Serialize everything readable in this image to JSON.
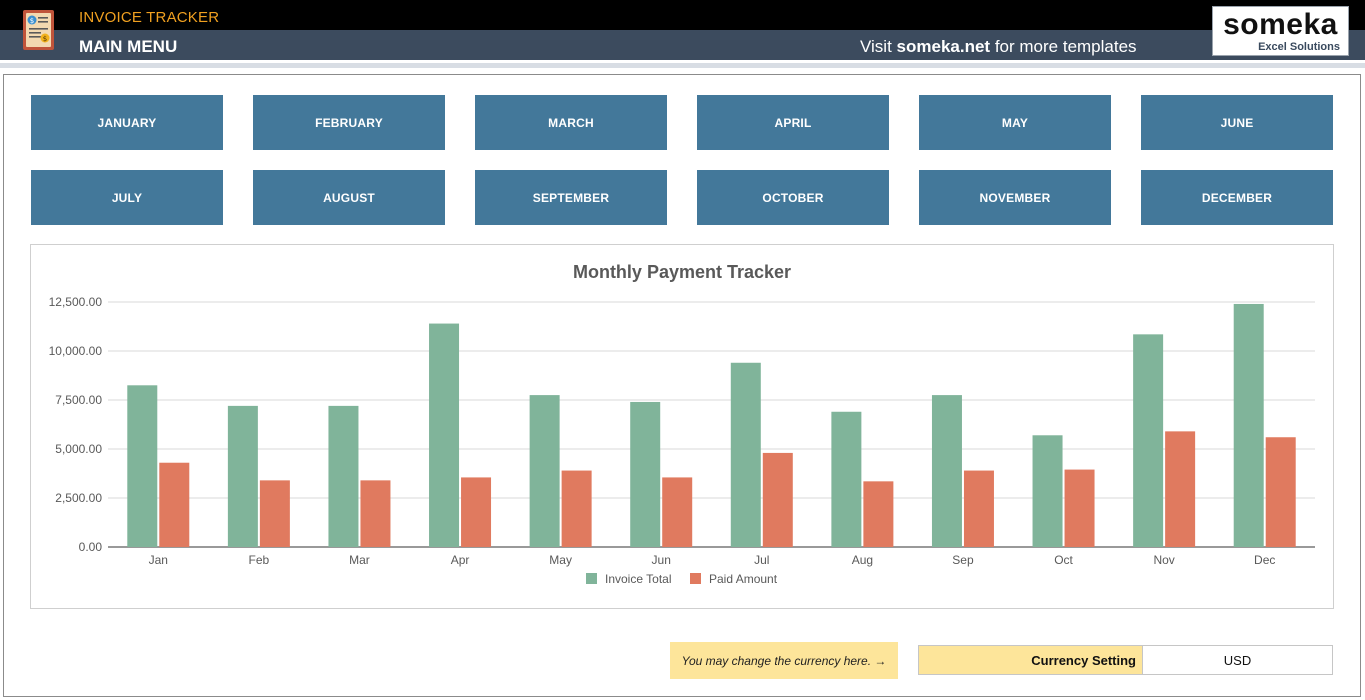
{
  "header": {
    "app_title": "INVOICE TRACKER",
    "menu_title": "MAIN MENU",
    "visit_prefix": "Visit",
    "visit_site": "someka.net",
    "visit_suffix": "for more templates",
    "logo_brand": "someka",
    "logo_sub": "Excel Solutions"
  },
  "months": [
    "JANUARY",
    "FEBRUARY",
    "MARCH",
    "APRIL",
    "MAY",
    "JUNE",
    "JULY",
    "AUGUST",
    "SEPTEMBER",
    "OCTOBER",
    "NOVEMBER",
    "DECEMBER"
  ],
  "currency": {
    "note": "You may change the currency here. →",
    "label": "Currency Setting",
    "value": "USD"
  },
  "colors": {
    "header_dark": "#000000",
    "header_bar": "#3c4b5e",
    "title_accent": "#f0a020",
    "month_button": "#43789a",
    "invoice_series": "#80b49a",
    "paid_series": "#e07a5f",
    "note_bg": "#fde59a"
  },
  "chart_data": {
    "type": "bar",
    "title": "Monthly Payment Tracker",
    "categories": [
      "Jan",
      "Feb",
      "Mar",
      "Apr",
      "May",
      "Jun",
      "Jul",
      "Aug",
      "Sep",
      "Oct",
      "Nov",
      "Dec"
    ],
    "series": [
      {
        "name": "Invoice Total",
        "color": "#80b49a",
        "values": [
          8250,
          7200,
          7200,
          11400,
          7750,
          7400,
          9400,
          6900,
          7750,
          5700,
          10850,
          12400
        ]
      },
      {
        "name": "Paid Amount",
        "color": "#e07a5f",
        "values": [
          4300,
          3400,
          3400,
          3550,
          3900,
          3550,
          4800,
          3350,
          3900,
          3950,
          5900,
          5600
        ]
      }
    ],
    "y_ticks": [
      "0.00",
      "2,500.00",
      "5,000.00",
      "7,500.00",
      "10,000.00",
      "12,500.00"
    ],
    "ylim": [
      0,
      12500
    ],
    "grid": true,
    "legend": "bottom"
  }
}
